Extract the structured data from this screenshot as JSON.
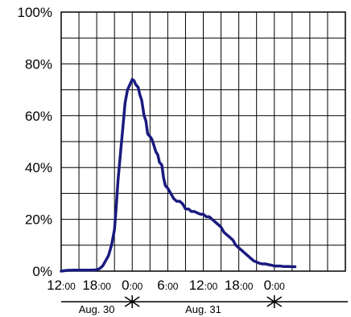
{
  "chart_data": {
    "type": "line",
    "title": "",
    "xlabel": "",
    "ylabel": "",
    "xlim_hours": [
      12,
      60
    ],
    "ylim": [
      0,
      100
    ],
    "grid": true,
    "y_ticks": [
      {
        "value": 0,
        "label": "0%"
      },
      {
        "value": 20,
        "label": "20%"
      },
      {
        "value": 40,
        "label": "40%"
      },
      {
        "value": 60,
        "label": "60%"
      },
      {
        "value": 80,
        "label": "80%"
      },
      {
        "value": 100,
        "label": "100%"
      }
    ],
    "x_ticks": [
      {
        "hour": 12,
        "main": "12",
        "sub": ":00"
      },
      {
        "hour": 18,
        "main": "18",
        "sub": ":00"
      },
      {
        "hour": 24,
        "main": "0",
        "sub": ":00"
      },
      {
        "hour": 30,
        "main": "6",
        "sub": ":00"
      },
      {
        "hour": 36,
        "main": "12",
        "sub": ":00"
      },
      {
        "hour": 42,
        "main": "18",
        "sub": ":00"
      },
      {
        "hour": 48,
        "main": "0",
        "sub": ":00"
      }
    ],
    "day_spans": [
      {
        "label": "Aug. 30",
        "start_hour": 12,
        "end_hour": 24
      },
      {
        "label": "Aug. 31",
        "start_hour": 24,
        "end_hour": 48
      }
    ],
    "line_color": "#1a1a80",
    "series": [
      {
        "x": [
          12,
          13,
          14,
          15,
          16,
          17,
          18,
          18.5,
          19,
          19.5,
          20,
          20.5,
          21,
          21.3,
          21.6,
          22,
          22.4,
          22.8,
          23.2,
          23.6,
          24,
          24.3,
          24.6,
          25,
          25.3,
          25.6,
          26,
          26.3,
          26.6,
          27,
          27.3,
          27.6,
          28,
          28.3,
          28.6,
          29,
          29.3,
          29.6,
          30,
          30.5,
          31,
          31.5,
          32,
          32.5,
          33,
          33.5,
          34,
          34.5,
          35,
          35.5,
          36,
          36.5,
          37,
          37.5,
          38,
          38.5,
          39,
          39.5,
          40,
          40.5,
          41,
          41.5,
          42,
          42.5,
          43,
          43.5,
          44,
          44.5,
          45,
          45.5,
          46,
          46.5,
          47,
          47.5,
          48,
          48.5,
          49,
          49.5,
          50,
          50.5,
          51,
          51.5
        ],
        "y": [
          0,
          0.3,
          0.4,
          0.4,
          0.4,
          0.4,
          0.5,
          1,
          2,
          4,
          6,
          10,
          16,
          25,
          35,
          45,
          55,
          65,
          70,
          72,
          74,
          73.5,
          72,
          71,
          68,
          66,
          60,
          58,
          53,
          52,
          51,
          49,
          46,
          45,
          42,
          41,
          36,
          33,
          32,
          30,
          28,
          27,
          27,
          26,
          24,
          24,
          23,
          23,
          22.5,
          22,
          22,
          21,
          21,
          20,
          19,
          18,
          17,
          15,
          14,
          13,
          12,
          10,
          9,
          8,
          7,
          6,
          5,
          4,
          3.5,
          3,
          2.8,
          2.8,
          2.5,
          2.3,
          2.0,
          2.0,
          2.0,
          1.8,
          1.8,
          1.8,
          1.7,
          1.7
        ]
      }
    ]
  }
}
